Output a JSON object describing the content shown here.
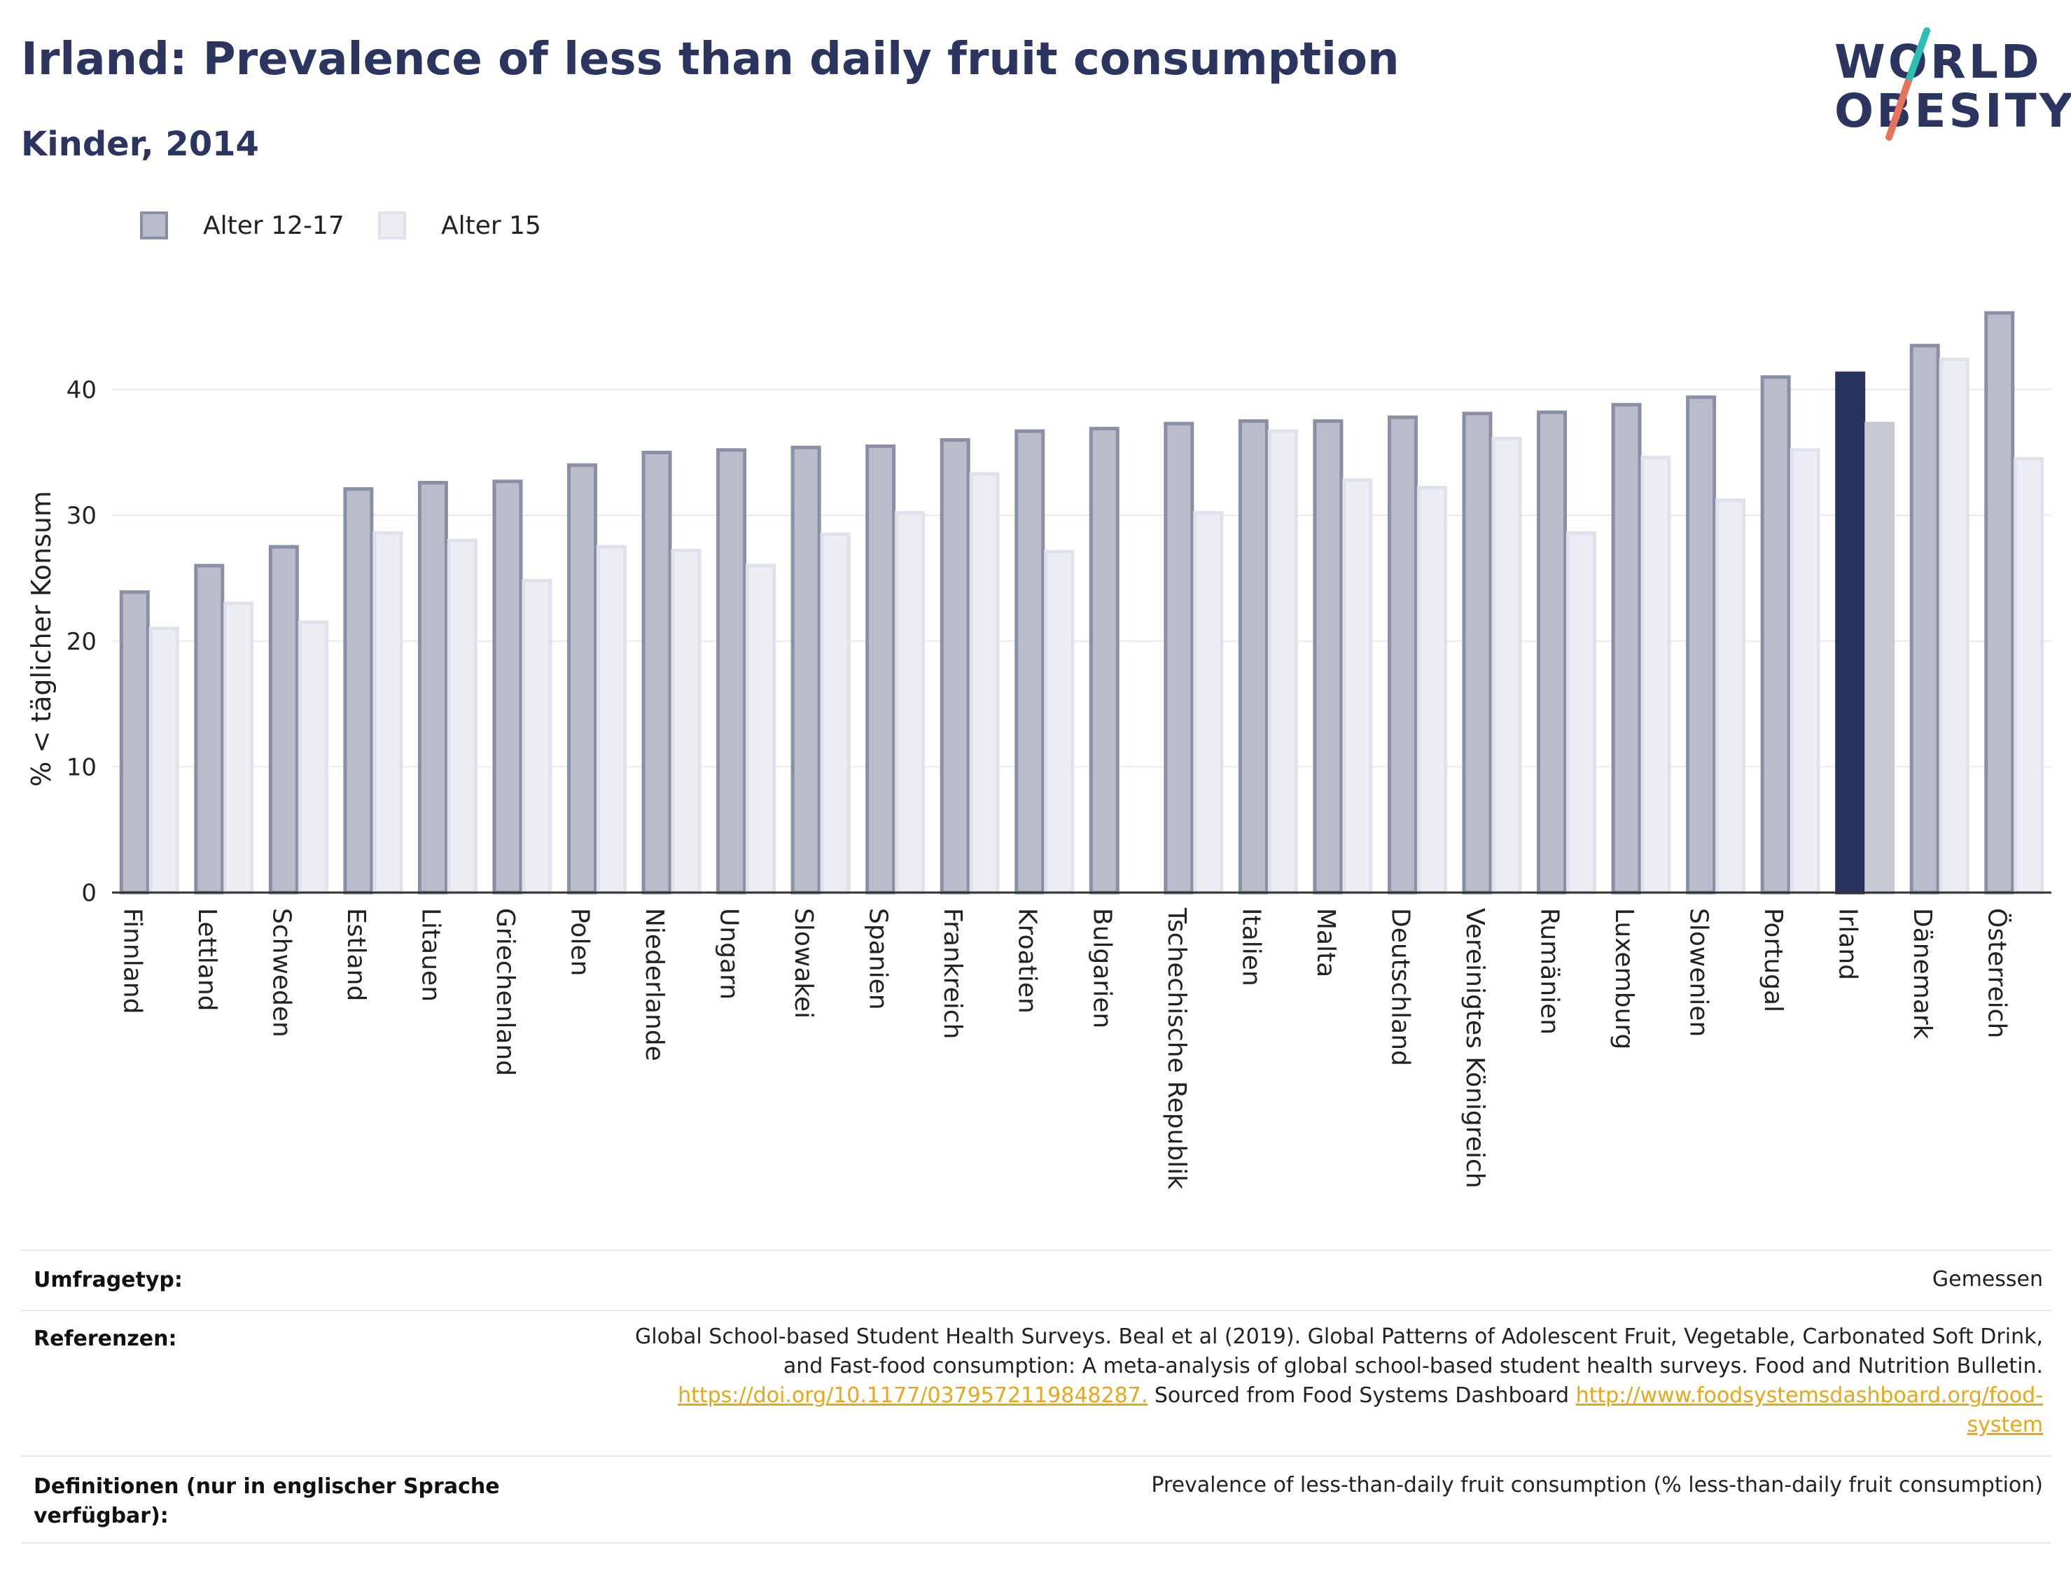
{
  "header": {
    "title": "Irland: Prevalence of less than daily fruit consumption",
    "subtitle": "Kinder, 2014"
  },
  "logo": {
    "line1": "WORLD",
    "line2": "OBESITY"
  },
  "colors": {
    "series1_fill": "#b9bccb",
    "series1_stroke": "#8a8fa6",
    "series2_fill": "#eceef3",
    "series2_stroke": "#dfe2ea",
    "highlight1": "#28335f",
    "highlight2": "#c7c9d5",
    "grid": "#e8eaf0",
    "logo_teal": "#2bbfb3",
    "logo_coral": "#e8735a"
  },
  "legend": [
    {
      "label": "Alter 12-17"
    },
    {
      "label": "Alter 15"
    }
  ],
  "chart_data": {
    "type": "bar",
    "ylabel": "% < täglicher Konsum",
    "xlabel": "",
    "ylim": [
      0,
      48
    ],
    "yticks": [
      0,
      10,
      20,
      30,
      40
    ],
    "grid": true,
    "legend_position": "top-left",
    "highlight_category": "Irland",
    "categories": [
      "Finnland",
      "Lettland",
      "Schweden",
      "Estland",
      "Litauen",
      "Griechenland",
      "Polen",
      "Niederlande",
      "Ungarn",
      "Slowakei",
      "Spanien",
      "Frankreich",
      "Kroatien",
      "Bulgarien",
      "Tschechische Republik",
      "Italien",
      "Malta",
      "Deutschland",
      "Vereinigtes Königreich",
      "Rumänien",
      "Luxemburg",
      "Slowenien",
      "Portugal",
      "Irland",
      "Dänemark",
      "Österreich"
    ],
    "series": [
      {
        "name": "Alter 12-17",
        "values": [
          23.9,
          26.0,
          27.5,
          32.1,
          32.6,
          32.7,
          34.0,
          35.0,
          35.2,
          35.4,
          35.5,
          36.0,
          36.7,
          36.9,
          37.3,
          37.5,
          37.5,
          37.8,
          38.1,
          38.2,
          38.8,
          39.4,
          41.0,
          41.3,
          43.5,
          46.1
        ]
      },
      {
        "name": "Alter 15",
        "values": [
          21.0,
          23.0,
          21.5,
          28.6,
          28.0,
          24.8,
          27.5,
          27.2,
          26.0,
          28.5,
          30.2,
          33.3,
          27.1,
          null,
          30.2,
          36.7,
          32.8,
          32.2,
          36.1,
          28.6,
          34.6,
          31.2,
          35.2,
          37.3,
          42.4,
          34.5
        ]
      }
    ]
  },
  "footer": {
    "survey_label": "Umfragetyp:",
    "survey_value": "Gemessen",
    "ref_label": "Referenzen:",
    "ref_line1": "Global School-based Student Health Surveys. Beal et al (2019). Global Patterns of Adolescent Fruit, Vegetable, Carbonated Soft Drink,",
    "ref_line2": "and Fast-food consumption: A meta-analysis of global school-based student health surveys. Food and Nutrition Bulletin.",
    "ref_link1": "https://doi.org/10.1177/0379572119848287.",
    "ref_mid": " Sourced from Food Systems Dashboard ",
    "ref_link2a": "http://www.foodsystemsdashboard.org/food-",
    "ref_link2b": "system",
    "def_label_1": "Definitionen (nur in englischer Sprache",
    "def_label_2": "verfügbar):",
    "def_value": "Prevalence of less-than-daily fruit consumption (% less-than-daily fruit consumption)"
  }
}
